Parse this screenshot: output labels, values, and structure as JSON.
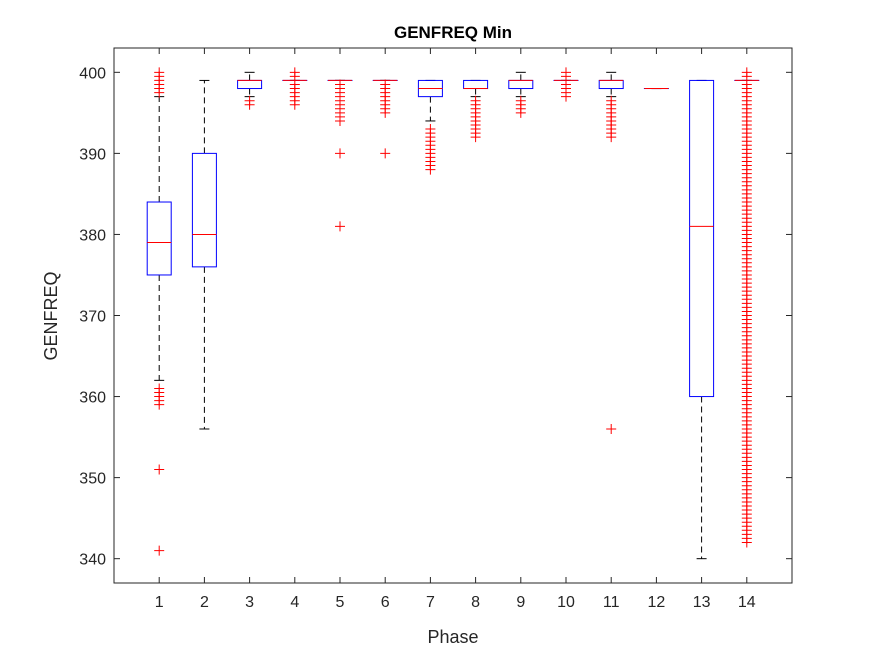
{
  "chart_data": {
    "type": "boxplot",
    "title": "GENFREQ Min",
    "xlabel": "Phase",
    "ylabel": "GENFREQ",
    "ylim": [
      337,
      403
    ],
    "yticks": [
      340,
      350,
      360,
      370,
      380,
      390,
      400
    ],
    "categories": [
      "1",
      "2",
      "3",
      "4",
      "5",
      "6",
      "7",
      "8",
      "9",
      "10",
      "11",
      "12",
      "13",
      "14"
    ],
    "grid": false,
    "colors": {
      "box": "#0000ff",
      "median": "#ff0000",
      "whisker": "#000000",
      "outlier": "#ff0000",
      "axis": "#262626"
    },
    "boxes": [
      {
        "phase": "1",
        "q1": 375,
        "median": 379,
        "q3": 384,
        "whisker_low": 362,
        "whisker_high": 397,
        "outliers": [
          341,
          351,
          359,
          359.5,
          360,
          360.5,
          361,
          397.5,
          398,
          398.5,
          399,
          399.5,
          400
        ]
      },
      {
        "phase": "2",
        "q1": 376,
        "median": 380,
        "q3": 390,
        "whisker_low": 356,
        "whisker_high": 399,
        "outliers": []
      },
      {
        "phase": "3",
        "q1": 398,
        "median": 399,
        "q3": 399,
        "whisker_low": 397,
        "whisker_high": 400,
        "outliers": [
          396,
          396.5
        ]
      },
      {
        "phase": "4",
        "q1": 399,
        "median": 399,
        "q3": 399,
        "whisker_low": 399,
        "whisker_high": 399,
        "outliers": [
          396,
          396.5,
          397,
          397.5,
          398,
          398.5,
          399.5,
          400
        ]
      },
      {
        "phase": "5",
        "q1": 399,
        "median": 399,
        "q3": 399,
        "whisker_low": 399,
        "whisker_high": 399,
        "outliers": [
          381,
          390,
          394,
          394.5,
          395,
          395.5,
          396,
          396.5,
          397,
          397.5,
          398,
          398.5
        ]
      },
      {
        "phase": "6",
        "q1": 399,
        "median": 399,
        "q3": 399,
        "whisker_low": 399,
        "whisker_high": 399,
        "outliers": [
          390,
          395,
          395.5,
          396,
          396.5,
          397,
          397.5,
          398,
          398.5
        ]
      },
      {
        "phase": "7",
        "q1": 397,
        "median": 398,
        "q3": 399,
        "whisker_low": 394,
        "whisker_high": 399,
        "outliers": [
          388,
          388.5,
          389,
          389.5,
          390,
          390.5,
          391,
          391.5,
          392,
          392.5,
          393
        ]
      },
      {
        "phase": "8",
        "q1": 398,
        "median": 398,
        "q3": 399,
        "whisker_low": 397,
        "whisker_high": 399,
        "outliers": [
          392,
          392.5,
          393,
          393.5,
          394,
          394.5,
          395,
          395.5,
          396,
          396.5
        ]
      },
      {
        "phase": "9",
        "q1": 398,
        "median": 399,
        "q3": 399,
        "whisker_low": 397,
        "whisker_high": 400,
        "outliers": [
          395,
          395.5,
          396,
          396.5
        ]
      },
      {
        "phase": "10",
        "q1": 399,
        "median": 399,
        "q3": 399,
        "whisker_low": 399,
        "whisker_high": 399,
        "outliers": [
          397,
          397.5,
          398,
          398.5,
          399.5,
          400
        ]
      },
      {
        "phase": "11",
        "q1": 398,
        "median": 399,
        "q3": 399,
        "whisker_low": 397,
        "whisker_high": 400,
        "outliers": [
          356,
          392,
          392.5,
          393,
          393.5,
          394,
          394.5,
          395,
          395.5,
          396,
          396.5
        ]
      },
      {
        "phase": "12",
        "q1": 398,
        "median": 398,
        "q3": 398,
        "whisker_low": 398,
        "whisker_high": 398,
        "outliers": []
      },
      {
        "phase": "13",
        "q1": 360,
        "median": 381,
        "q3": 399,
        "whisker_low": 340,
        "whisker_high": 399,
        "outliers": []
      },
      {
        "phase": "14",
        "q1": 399,
        "median": 399,
        "q3": 399,
        "whisker_low": 399,
        "whisker_high": 399,
        "outlier_range": [
          342,
          400
        ],
        "outlier_step": 0.5,
        "outliers": []
      }
    ]
  }
}
